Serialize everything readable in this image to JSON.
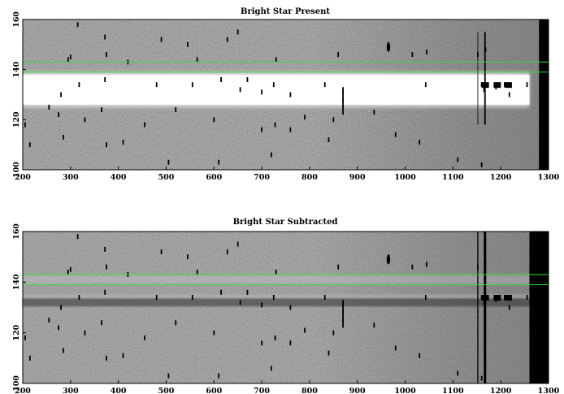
{
  "chart_data": [
    {
      "type": "heatmap",
      "title": "Bright Star Present",
      "xlabel": "",
      "ylabel": "",
      "xlim": [
        200,
        1300
      ],
      "ylim": [
        100,
        160
      ],
      "xticks": [
        "200",
        "300",
        "400",
        "500",
        "600",
        "700",
        "800",
        "900",
        "1000",
        "1100",
        "1200",
        "1300"
      ],
      "yticks": [
        "100",
        "120",
        "140",
        "160"
      ],
      "colormap": "grayscale",
      "bright_band": {
        "y_range": [
          126,
          138
        ],
        "x_range": [
          200,
          1260
        ],
        "level": "white"
      },
      "green_lines_y": [
        143,
        139
      ],
      "masked_region_x": [
        1280,
        1300
      ]
    },
    {
      "type": "heatmap",
      "title": "Bright Star Subtracted",
      "xlabel": "",
      "ylabel": "",
      "xlim": [
        200,
        1300
      ],
      "ylim": [
        100,
        160
      ],
      "xticks": [
        "200",
        "300",
        "400",
        "500",
        "600",
        "700",
        "800",
        "900",
        "1000",
        "1100",
        "1200",
        "1300"
      ],
      "yticks": [
        "100",
        "120",
        "140",
        "160"
      ],
      "colormap": "grayscale",
      "residual_band": {
        "y_center": 132,
        "level": "dark"
      },
      "faint_glow_y": 141,
      "green_lines_y": [
        143,
        139
      ],
      "masked_region_x": [
        1260,
        1300
      ]
    }
  ],
  "colors": {
    "line": "#33dd33",
    "mask": "#000000",
    "background": "#808080",
    "band": "#ffffff"
  },
  "speckles": [
    [
      315,
      158
    ],
    [
      372,
      153
    ],
    [
      490,
      152
    ],
    [
      545,
      150
    ],
    [
      628,
      152
    ],
    [
      650,
      155
    ],
    [
      300,
      145
    ],
    [
      375,
      146
    ],
    [
      420,
      143
    ],
    [
      565,
      144
    ],
    [
      730,
      144
    ],
    [
      860,
      146
    ],
    [
      965,
      150
    ],
    [
      1015,
      146
    ],
    [
      1045,
      147
    ],
    [
      1152,
      146
    ],
    [
      1168,
      148
    ],
    [
      295,
      144
    ],
    [
      318,
      134
    ],
    [
      372,
      136
    ],
    [
      480,
      134
    ],
    [
      555,
      134
    ],
    [
      615,
      136
    ],
    [
      655,
      132
    ],
    [
      670,
      136
    ],
    [
      700,
      131
    ],
    [
      725,
      134
    ],
    [
      728,
      118
    ],
    [
      832,
      134
    ],
    [
      870,
      131
    ],
    [
      870,
      125
    ],
    [
      1043,
      134
    ],
    [
      1160,
      134
    ],
    [
      1165,
      132
    ],
    [
      1190,
      133
    ],
    [
      1208,
      134
    ],
    [
      1218,
      130
    ],
    [
      1255,
      134
    ],
    [
      255,
      125
    ],
    [
      275,
      122
    ],
    [
      280,
      130
    ],
    [
      330,
      120
    ],
    [
      365,
      124
    ],
    [
      455,
      118
    ],
    [
      520,
      124
    ],
    [
      600,
      120
    ],
    [
      700,
      116
    ],
    [
      760,
      116
    ],
    [
      790,
      121
    ],
    [
      840,
      112
    ],
    [
      850,
      120
    ],
    [
      205,
      118
    ],
    [
      215,
      110
    ],
    [
      285,
      113
    ],
    [
      375,
      110
    ],
    [
      410,
      111
    ],
    [
      505,
      103
    ],
    [
      610,
      103
    ],
    [
      720,
      106
    ],
    [
      1030,
      111
    ],
    [
      1110,
      104
    ],
    [
      1160,
      102
    ],
    [
      870,
      128
    ],
    [
      760,
      130
    ],
    [
      935,
      123
    ],
    [
      980,
      114
    ]
  ]
}
